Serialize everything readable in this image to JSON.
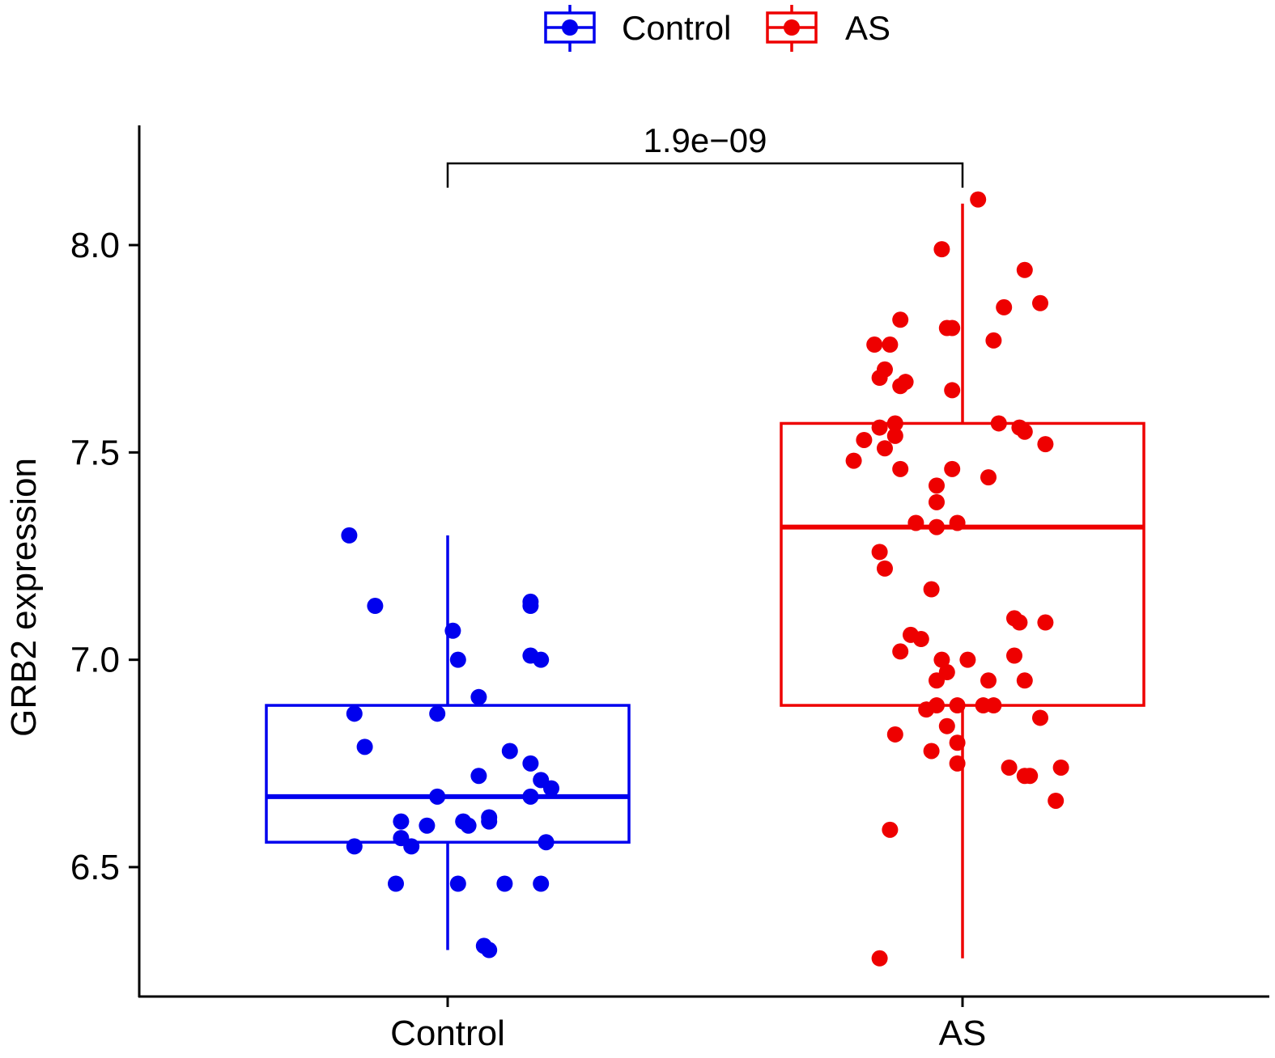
{
  "chart_data": {
    "type": "boxplot-with-jitter",
    "title": "",
    "xlabel": "",
    "ylabel": "GRB2 expression",
    "ylim": [
      6.22,
      8.25
    ],
    "yticks": [
      6.5,
      7.0,
      7.5,
      8.0
    ],
    "ytick_labels": [
      "6.5",
      "7.0",
      "7.5",
      "8.0"
    ],
    "categories": [
      "Control",
      "AS"
    ],
    "legend": {
      "position": "top",
      "entries": [
        "Control",
        "AS"
      ]
    },
    "colors": {
      "Control": "#0000ee",
      "AS": "#ee0000"
    },
    "comparison": {
      "label": "1.9e−09",
      "groups": [
        "Control",
        "AS"
      ],
      "y": 8.19
    },
    "groups": [
      {
        "name": "Control",
        "color": "#0000ee",
        "box": {
          "whisker_low": 6.3,
          "q1": 6.56,
          "median": 6.67,
          "q3": 6.89,
          "whisker_high": 7.3
        },
        "points": [
          {
            "jitter": -0.19,
            "y": 7.3
          },
          {
            "jitter": -0.14,
            "y": 7.13
          },
          {
            "jitter": 0.01,
            "y": 7.07
          },
          {
            "jitter": 0.16,
            "y": 7.14
          },
          {
            "jitter": 0.16,
            "y": 7.13
          },
          {
            "jitter": 0.02,
            "y": 7.0
          },
          {
            "jitter": 0.16,
            "y": 7.01
          },
          {
            "jitter": 0.18,
            "y": 7.0
          },
          {
            "jitter": 0.06,
            "y": 6.91
          },
          {
            "jitter": -0.18,
            "y": 6.87
          },
          {
            "jitter": -0.02,
            "y": 6.87
          },
          {
            "jitter": -0.16,
            "y": 6.79
          },
          {
            "jitter": 0.12,
            "y": 6.78
          },
          {
            "jitter": 0.16,
            "y": 6.75
          },
          {
            "jitter": 0.06,
            "y": 6.72
          },
          {
            "jitter": 0.18,
            "y": 6.71
          },
          {
            "jitter": 0.2,
            "y": 6.69
          },
          {
            "jitter": -0.02,
            "y": 6.67
          },
          {
            "jitter": 0.16,
            "y": 6.67
          },
          {
            "jitter": -0.09,
            "y": 6.61
          },
          {
            "jitter": -0.04,
            "y": 6.6
          },
          {
            "jitter": 0.04,
            "y": 6.6
          },
          {
            "jitter": 0.03,
            "y": 6.61
          },
          {
            "jitter": 0.08,
            "y": 6.61
          },
          {
            "jitter": 0.08,
            "y": 6.62
          },
          {
            "jitter": -0.09,
            "y": 6.57
          },
          {
            "jitter": -0.07,
            "y": 6.55
          },
          {
            "jitter": -0.18,
            "y": 6.55
          },
          {
            "jitter": 0.19,
            "y": 6.56
          },
          {
            "jitter": -0.1,
            "y": 6.46
          },
          {
            "jitter": 0.02,
            "y": 6.46
          },
          {
            "jitter": 0.11,
            "y": 6.46
          },
          {
            "jitter": 0.18,
            "y": 6.46
          },
          {
            "jitter": 0.07,
            "y": 6.31
          },
          {
            "jitter": 0.08,
            "y": 6.3
          }
        ]
      },
      {
        "name": "AS",
        "color": "#ee0000",
        "box": {
          "whisker_low": 6.28,
          "q1": 6.89,
          "median": 7.32,
          "q3": 7.57,
          "whisker_high": 8.1
        },
        "points": [
          {
            "jitter": 0.03,
            "y": 8.11
          },
          {
            "jitter": -0.04,
            "y": 7.99
          },
          {
            "jitter": 0.12,
            "y": 7.94
          },
          {
            "jitter": 0.08,
            "y": 7.85
          },
          {
            "jitter": 0.15,
            "y": 7.86
          },
          {
            "jitter": -0.12,
            "y": 7.82
          },
          {
            "jitter": -0.02,
            "y": 7.8
          },
          {
            "jitter": -0.03,
            "y": 7.8
          },
          {
            "jitter": 0.06,
            "y": 7.77
          },
          {
            "jitter": -0.17,
            "y": 7.76
          },
          {
            "jitter": -0.14,
            "y": 7.76
          },
          {
            "jitter": -0.15,
            "y": 7.7
          },
          {
            "jitter": -0.16,
            "y": 7.68
          },
          {
            "jitter": -0.11,
            "y": 7.67
          },
          {
            "jitter": -0.12,
            "y": 7.66
          },
          {
            "jitter": -0.02,
            "y": 7.65
          },
          {
            "jitter": -0.16,
            "y": 7.56
          },
          {
            "jitter": -0.13,
            "y": 7.57
          },
          {
            "jitter": 0.07,
            "y": 7.57
          },
          {
            "jitter": 0.11,
            "y": 7.56
          },
          {
            "jitter": 0.12,
            "y": 7.55
          },
          {
            "jitter": -0.19,
            "y": 7.53
          },
          {
            "jitter": -0.13,
            "y": 7.54
          },
          {
            "jitter": -0.15,
            "y": 7.51
          },
          {
            "jitter": 0.16,
            "y": 7.52
          },
          {
            "jitter": -0.21,
            "y": 7.48
          },
          {
            "jitter": -0.12,
            "y": 7.46
          },
          {
            "jitter": -0.02,
            "y": 7.46
          },
          {
            "jitter": 0.05,
            "y": 7.44
          },
          {
            "jitter": -0.05,
            "y": 7.42
          },
          {
            "jitter": -0.05,
            "y": 7.38
          },
          {
            "jitter": -0.09,
            "y": 7.33
          },
          {
            "jitter": -0.05,
            "y": 7.32
          },
          {
            "jitter": -0.01,
            "y": 7.33
          },
          {
            "jitter": -0.16,
            "y": 7.26
          },
          {
            "jitter": -0.15,
            "y": 7.22
          },
          {
            "jitter": -0.06,
            "y": 7.17
          },
          {
            "jitter": 0.1,
            "y": 7.1
          },
          {
            "jitter": 0.11,
            "y": 7.09
          },
          {
            "jitter": 0.16,
            "y": 7.09
          },
          {
            "jitter": -0.1,
            "y": 7.06
          },
          {
            "jitter": -0.08,
            "y": 7.05
          },
          {
            "jitter": -0.12,
            "y": 7.02
          },
          {
            "jitter": 0.1,
            "y": 7.01
          },
          {
            "jitter": -0.04,
            "y": 7.0
          },
          {
            "jitter": 0.01,
            "y": 7.0
          },
          {
            "jitter": -0.03,
            "y": 6.97
          },
          {
            "jitter": -0.05,
            "y": 6.95
          },
          {
            "jitter": 0.05,
            "y": 6.95
          },
          {
            "jitter": 0.12,
            "y": 6.95
          },
          {
            "jitter": -0.05,
            "y": 6.89
          },
          {
            "jitter": -0.01,
            "y": 6.89
          },
          {
            "jitter": 0.04,
            "y": 6.89
          },
          {
            "jitter": 0.06,
            "y": 6.89
          },
          {
            "jitter": -0.07,
            "y": 6.88
          },
          {
            "jitter": 0.15,
            "y": 6.86
          },
          {
            "jitter": -0.13,
            "y": 6.82
          },
          {
            "jitter": -0.03,
            "y": 6.84
          },
          {
            "jitter": -0.01,
            "y": 6.8
          },
          {
            "jitter": -0.06,
            "y": 6.78
          },
          {
            "jitter": -0.01,
            "y": 6.75
          },
          {
            "jitter": 0.09,
            "y": 6.74
          },
          {
            "jitter": 0.19,
            "y": 6.74
          },
          {
            "jitter": 0.12,
            "y": 6.72
          },
          {
            "jitter": 0.13,
            "y": 6.72
          },
          {
            "jitter": 0.18,
            "y": 6.66
          },
          {
            "jitter": -0.14,
            "y": 6.59
          },
          {
            "jitter": -0.16,
            "y": 6.28
          }
        ]
      }
    ]
  }
}
